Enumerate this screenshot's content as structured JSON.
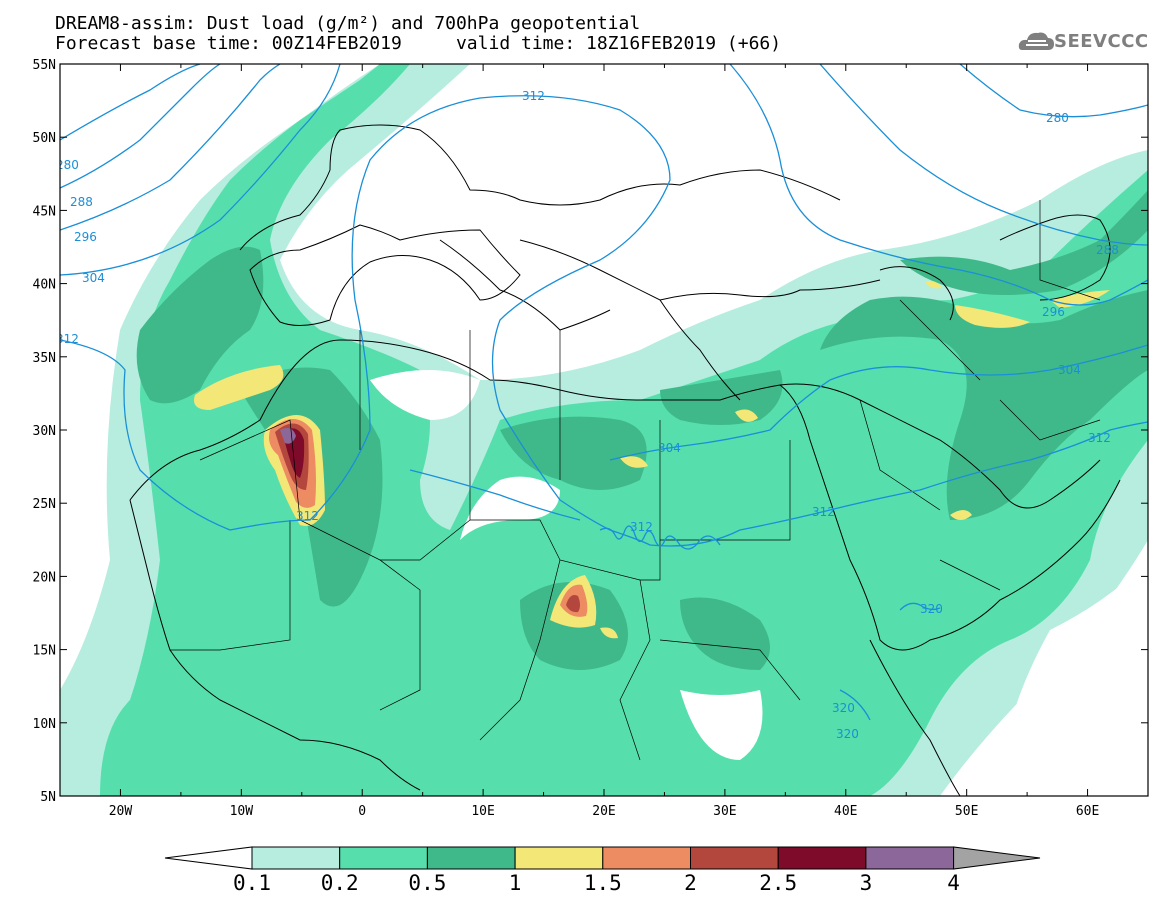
{
  "header": {
    "title_line1": "DREAM8-assim: Dust load (g/m²) and 700hPa geopotential",
    "title_line2": "Forecast base time: 00Z14FEB2019     valid time: 18Z16FEB2019 (+66)",
    "logo_text": "SEEVCCC"
  },
  "map": {
    "lon_range": [
      -25,
      65
    ],
    "lat_range": [
      5,
      55
    ],
    "lon_ticks": [
      "20W",
      "10W",
      "0",
      "10E",
      "20E",
      "30E",
      "40E",
      "50E",
      "60E"
    ],
    "lat_ticks": [
      "55N",
      "50N",
      "45N",
      "40N",
      "35N",
      "30N",
      "25N",
      "20N",
      "15N",
      "10N",
      "5N"
    ],
    "geopotential_labels": [
      "312",
      "280",
      "288",
      "296",
      "304",
      "312",
      "312",
      "312",
      "312",
      "304",
      "312",
      "280",
      "288",
      "296",
      "304",
      "312",
      "320",
      "320",
      "320"
    ],
    "isoline_color": "#1a8fd8"
  },
  "colorbar": {
    "levels": [
      "0.1",
      "0.2",
      "0.5",
      "1",
      "1.5",
      "2",
      "2.5",
      "3",
      "4"
    ],
    "colors": [
      "#b6eddf",
      "#56dfad",
      "#40b98a",
      "#f3e877",
      "#ed8b63",
      "#b4473d",
      "#7f0b2b",
      "#8c679a",
      "#a3a3a3"
    ],
    "under_color": "#ffffff"
  }
}
